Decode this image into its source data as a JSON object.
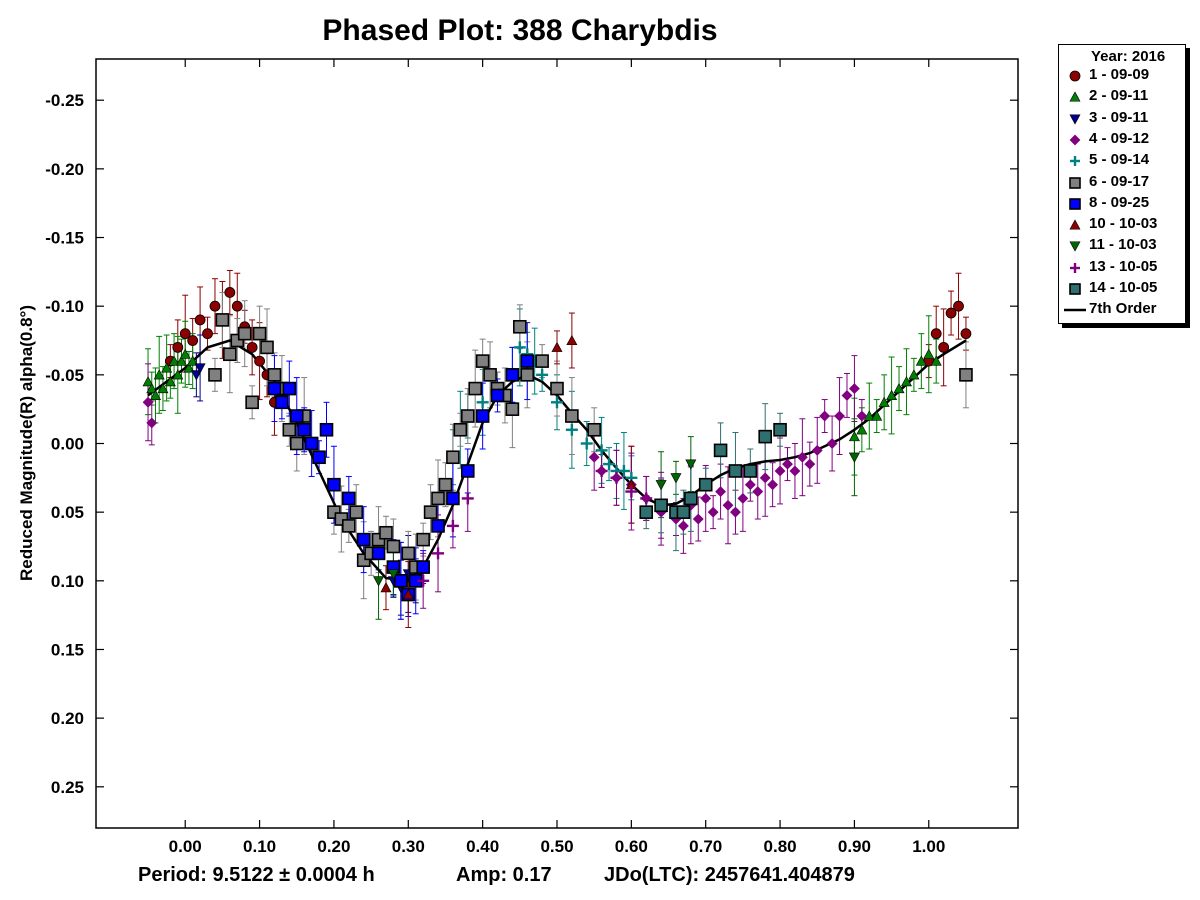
{
  "chart_data": {
    "type": "scatter",
    "title": "Phased Plot: 388 Charybdis",
    "xlabel": "",
    "ylabel": "Reduced Magnitude(R) alpha(0.8°)",
    "xlim": [
      -0.12,
      1.12
    ],
    "ylim": [
      0.28,
      -0.28
    ],
    "y_inverted": true,
    "x_ticks": [
      "0.00",
      "0.10",
      "0.20",
      "0.30",
      "0.40",
      "0.50",
      "0.60",
      "0.70",
      "0.80",
      "0.90",
      "1.00"
    ],
    "x_tick_values": [
      0.0,
      0.1,
      0.2,
      0.3,
      0.4,
      0.5,
      0.6,
      0.7,
      0.8,
      0.9,
      1.0
    ],
    "y_ticks": [
      "-0.25",
      "-0.20",
      "-0.15",
      "-0.10",
      "-0.05",
      "0.00",
      "0.05",
      "0.10",
      "0.15",
      "0.20",
      "0.25"
    ],
    "y_tick_values": [
      -0.25,
      -0.2,
      -0.15,
      -0.1,
      -0.05,
      0.0,
      0.05,
      0.1,
      0.15,
      0.2,
      0.25
    ],
    "grid": false,
    "legend_position": "outside-right",
    "legend_title": "Year: 2016",
    "footer": {
      "period": "Period: 9.5122 ± 0.0004 h",
      "amp": "Amp: 0.17",
      "jdo": "JDo(LTC): 2457641.404879"
    },
    "fit": {
      "name": "7th Order",
      "color": "#000000",
      "x": [
        -0.05,
        0.0,
        0.03,
        0.06,
        0.09,
        0.12,
        0.15,
        0.18,
        0.21,
        0.24,
        0.27,
        0.3,
        0.32,
        0.34,
        0.36,
        0.38,
        0.4,
        0.42,
        0.44,
        0.46,
        0.48,
        0.5,
        0.52,
        0.54,
        0.56,
        0.58,
        0.6,
        0.62,
        0.64,
        0.66,
        0.68,
        0.7,
        0.72,
        0.74,
        0.76,
        0.78,
        0.8,
        0.82,
        0.84,
        0.86,
        0.88,
        0.9,
        0.92,
        0.94,
        0.96,
        0.98,
        1.0,
        1.02,
        1.05
      ],
      "y": [
        -0.035,
        -0.055,
        -0.07,
        -0.075,
        -0.065,
        -0.045,
        -0.015,
        0.02,
        0.055,
        0.08,
        0.098,
        0.1,
        0.09,
        0.07,
        0.045,
        0.015,
        -0.015,
        -0.035,
        -0.045,
        -0.05,
        -0.045,
        -0.035,
        -0.022,
        -0.01,
        0.005,
        0.018,
        0.03,
        0.04,
        0.045,
        0.044,
        0.038,
        0.03,
        0.023,
        0.018,
        0.015,
        0.013,
        0.012,
        0.01,
        0.007,
        0.002,
        -0.003,
        -0.01,
        -0.018,
        -0.028,
        -0.038,
        -0.048,
        -0.058,
        -0.065,
        -0.075
      ]
    },
    "series": [
      {
        "name": "1 - 09-09",
        "marker": "circle",
        "color": "#8b0000",
        "x": [
          -0.02,
          -0.01,
          0.0,
          0.01,
          0.02,
          0.03,
          0.04,
          0.05,
          0.06,
          0.07,
          0.08,
          0.09,
          0.1,
          0.11,
          0.12,
          1.0,
          1.01,
          1.02,
          1.03,
          1.04,
          1.05
        ],
        "y": [
          -0.06,
          -0.07,
          -0.08,
          -0.075,
          -0.09,
          -0.08,
          -0.1,
          -0.09,
          -0.11,
          -0.1,
          -0.085,
          -0.07,
          -0.06,
          -0.05,
          -0.03,
          -0.06,
          -0.08,
          -0.07,
          -0.095,
          -0.1,
          -0.08
        ]
      },
      {
        "name": "2 - 09-11",
        "marker": "triangle-up",
        "color": "#008000",
        "x": [
          -0.05,
          -0.045,
          -0.04,
          -0.035,
          -0.03,
          -0.025,
          -0.02,
          -0.015,
          -0.01,
          -0.005,
          0.0,
          0.005,
          0.01,
          0.9,
          0.91,
          0.92,
          0.93,
          0.94,
          0.95,
          0.96,
          0.97,
          0.98,
          0.99,
          1.0,
          1.01
        ],
        "y": [
          -0.045,
          -0.04,
          -0.035,
          -0.05,
          -0.04,
          -0.055,
          -0.045,
          -0.06,
          -0.05,
          -0.06,
          -0.065,
          -0.055,
          -0.06,
          -0.005,
          -0.01,
          -0.02,
          -0.02,
          -0.03,
          -0.035,
          -0.04,
          -0.045,
          -0.05,
          -0.06,
          -0.065,
          -0.06
        ]
      },
      {
        "name": "3 - 09-11",
        "marker": "triangle-down",
        "color": "#00008b",
        "x": [
          0.015,
          0.02,
          0.28,
          0.29,
          0.3,
          0.31
        ],
        "y": [
          -0.05,
          -0.055,
          0.1,
          0.105,
          0.095,
          0.1
        ]
      },
      {
        "name": "4 - 09-12",
        "marker": "diamond",
        "color": "#800080",
        "x": [
          -0.05,
          -0.045,
          0.55,
          0.56,
          0.58,
          0.6,
          0.62,
          0.64,
          0.66,
          0.67,
          0.68,
          0.69,
          0.7,
          0.71,
          0.72,
          0.73,
          0.74,
          0.75,
          0.76,
          0.77,
          0.78,
          0.79,
          0.8,
          0.81,
          0.82,
          0.83,
          0.84,
          0.85,
          0.86,
          0.87,
          0.88,
          0.89,
          0.9,
          0.91
        ],
        "y": [
          -0.03,
          -0.015,
          0.01,
          0.02,
          0.025,
          0.03,
          0.04,
          0.05,
          0.055,
          0.06,
          0.045,
          0.055,
          0.04,
          0.05,
          0.035,
          0.045,
          0.05,
          0.04,
          0.03,
          0.035,
          0.025,
          0.03,
          0.02,
          0.015,
          0.02,
          0.01,
          0.015,
          0.005,
          -0.02,
          0.0,
          -0.02,
          -0.035,
          -0.04,
          -0.02
        ]
      },
      {
        "name": "5 - 09-14",
        "marker": "plus",
        "color": "#008080",
        "x": [
          0.36,
          0.37,
          0.38,
          0.4,
          0.42,
          0.44,
          0.45,
          0.46,
          0.47,
          0.48,
          0.5,
          0.52,
          0.54,
          0.56,
          0.57,
          0.58,
          0.59,
          0.6
        ],
        "y": [
          0.01,
          -0.01,
          -0.02,
          -0.03,
          -0.04,
          -0.05,
          -0.07,
          -0.065,
          -0.06,
          -0.05,
          -0.03,
          -0.01,
          0.0,
          0.005,
          0.015,
          0.02,
          0.02,
          0.025
        ]
      },
      {
        "name": "6 - 09-17",
        "marker": "square",
        "color": "#808080",
        "x": [
          0.04,
          0.05,
          0.06,
          0.07,
          0.08,
          0.09,
          0.1,
          0.11,
          0.12,
          0.13,
          0.14,
          0.15,
          0.16,
          0.2,
          0.21,
          0.22,
          0.23,
          0.24,
          0.25,
          0.26,
          0.27,
          0.28,
          0.29,
          0.3,
          0.31,
          0.32,
          0.33,
          0.34,
          0.35,
          0.36,
          0.37,
          0.38,
          0.39,
          0.4,
          0.41,
          0.42,
          0.43,
          0.44,
          0.45,
          0.46,
          0.48,
          0.5,
          0.52,
          0.55,
          1.05
        ],
        "y": [
          -0.05,
          -0.09,
          -0.065,
          -0.075,
          -0.08,
          -0.03,
          -0.08,
          -0.07,
          -0.05,
          -0.04,
          -0.01,
          0.0,
          -0.02,
          0.05,
          0.055,
          0.06,
          0.05,
          0.085,
          0.08,
          0.07,
          0.065,
          0.075,
          0.1,
          0.08,
          0.09,
          0.07,
          0.05,
          0.04,
          0.03,
          0.01,
          -0.01,
          -0.02,
          -0.04,
          -0.06,
          -0.05,
          -0.04,
          -0.035,
          -0.025,
          -0.085,
          -0.05,
          -0.06,
          -0.04,
          -0.02,
          -0.01,
          -0.05
        ]
      },
      {
        "name": "8 - 09-25",
        "marker": "square",
        "color": "#0000ff",
        "x": [
          0.12,
          0.13,
          0.14,
          0.15,
          0.16,
          0.17,
          0.18,
          0.19,
          0.2,
          0.22,
          0.24,
          0.26,
          0.28,
          0.29,
          0.3,
          0.31,
          0.32,
          0.34,
          0.36,
          0.38,
          0.4,
          0.42,
          0.44,
          0.46
        ],
        "y": [
          -0.04,
          -0.03,
          -0.04,
          -0.02,
          -0.01,
          0.0,
          0.01,
          -0.01,
          0.03,
          0.04,
          0.07,
          0.08,
          0.09,
          0.1,
          0.11,
          0.1,
          0.09,
          0.06,
          0.04,
          0.02,
          -0.02,
          -0.035,
          -0.05,
          -0.06
        ]
      },
      {
        "name": "10 - 10-03",
        "marker": "triangle-up",
        "color": "#8b0000",
        "x": [
          0.27,
          0.3,
          0.5,
          0.52,
          0.6
        ],
        "y": [
          0.105,
          0.11,
          -0.07,
          -0.075,
          0.03
        ]
      },
      {
        "name": "11 - 10-03",
        "marker": "triangle-down",
        "color": "#006400",
        "x": [
          0.26,
          0.28,
          0.64,
          0.66,
          0.68,
          0.9
        ],
        "y": [
          0.1,
          0.095,
          0.03,
          0.025,
          0.015,
          0.01
        ]
      },
      {
        "name": "13 - 10-05",
        "marker": "plus",
        "color": "#800080",
        "x": [
          0.32,
          0.34,
          0.36,
          0.38,
          0.56,
          0.58,
          0.6,
          0.62,
          0.64
        ],
        "y": [
          0.1,
          0.08,
          0.06,
          0.04,
          0.02,
          0.025,
          0.035,
          0.04,
          0.045
        ]
      },
      {
        "name": "14 - 10-05",
        "marker": "square",
        "color": "#2f6f6f",
        "x": [
          0.62,
          0.64,
          0.66,
          0.67,
          0.68,
          0.7,
          0.72,
          0.74,
          0.76,
          0.78,
          0.8
        ],
        "y": [
          0.05,
          0.045,
          0.05,
          0.05,
          0.04,
          0.03,
          0.005,
          0.02,
          0.02,
          -0.005,
          -0.01
        ]
      }
    ]
  }
}
